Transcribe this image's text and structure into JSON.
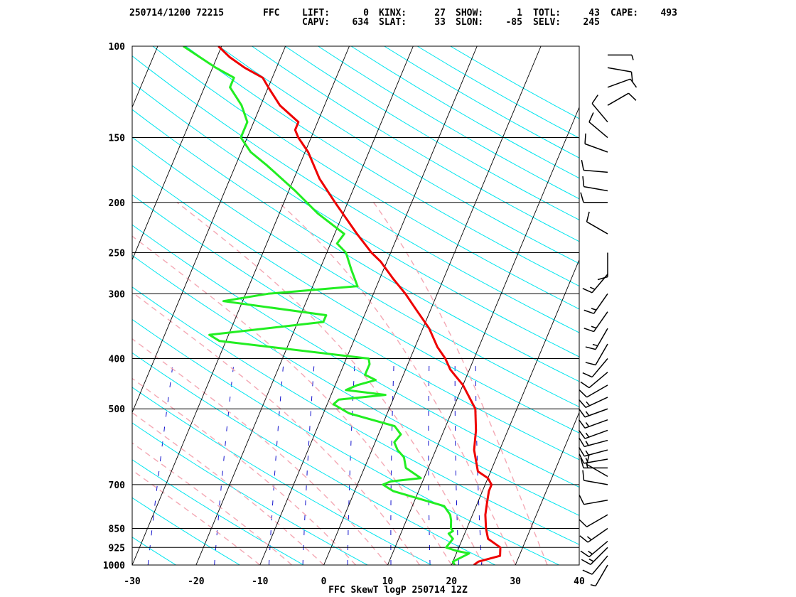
{
  "header": {
    "line1": [
      {
        "key": "stamp",
        "text": "250714/1200 72215"
      },
      {
        "key": "station",
        "text": "FFC"
      },
      {
        "key": "lift",
        "text": "LIFT:      0"
      },
      {
        "key": "kinx",
        "text": "KINX:     27"
      },
      {
        "key": "show",
        "text": "SHOW:      1"
      },
      {
        "key": "totl",
        "text": "TOTL:     43"
      },
      {
        "key": "cape",
        "text": "CAPE:    493"
      }
    ],
    "line2": [
      {
        "key": "capv",
        "text": "CAPV:    634"
      },
      {
        "key": "slat",
        "text": "SLAT:     33"
      },
      {
        "key": "slon",
        "text": "SLON:    -85"
      },
      {
        "key": "selv",
        "text": "SELV:    245"
      }
    ]
  },
  "chart_data": {
    "type": "line",
    "title": "FFC SkewT logP 250714 12Z",
    "x_axis": {
      "label": "",
      "unit": "degC",
      "range": [
        -30,
        40
      ],
      "ticks": [
        -30,
        -20,
        -10,
        0,
        10,
        20,
        30,
        40
      ]
    },
    "y_axis": {
      "label": "",
      "unit": "hPa",
      "scale": "log",
      "range": [
        1000,
        100
      ],
      "ticks": [
        100,
        150,
        200,
        250,
        300,
        400,
        500,
        700,
        850,
        925,
        1000
      ]
    },
    "skew_deg_per_log10": 34,
    "background": {
      "isotherms_deg": [
        -160,
        -150,
        -140,
        -130,
        -120,
        -110,
        -100,
        -90,
        -80,
        -70,
        -60,
        -50,
        -40,
        -30,
        -20,
        -10,
        0,
        10,
        20,
        30,
        40
      ],
      "dry_adiabats_theta_K": [
        250,
        260,
        270,
        280,
        290,
        300,
        310,
        320,
        330,
        340,
        350,
        360,
        370,
        380,
        390,
        400,
        410,
        420,
        430,
        440,
        450,
        460,
        470,
        480,
        490,
        500
      ],
      "moist_adiabats_thetaw_C": [
        -10,
        -5,
        0,
        5,
        10,
        15,
        20,
        25,
        30,
        35
      ],
      "mixing_ratios_gkg": [
        0.4,
        1,
        2,
        3,
        5,
        8,
        12,
        16,
        20
      ]
    },
    "colors": {
      "temperature": "#ee0000",
      "dewpoint": "#22ee22",
      "isotherm": "#000000",
      "isobar": "#000000",
      "dry_adiabat": "#00e5ee",
      "moist_adiabat": "#f4a8b4",
      "mixing_ratio": "#1111cc",
      "wind_barb": "#000000"
    },
    "series": [
      {
        "key": "temperature",
        "points": [
          [
            1000,
            23.5
          ],
          [
            985,
            24.0
          ],
          [
            960,
            27.0
          ],
          [
            925,
            26.5
          ],
          [
            890,
            24.0
          ],
          [
            850,
            23.0
          ],
          [
            800,
            22.0
          ],
          [
            760,
            21.5
          ],
          [
            720,
            21.0
          ],
          [
            700,
            21.0
          ],
          [
            680,
            20.0
          ],
          [
            660,
            18.0
          ],
          [
            600,
            16.0
          ],
          [
            550,
            15.0
          ],
          [
            500,
            13.5
          ],
          [
            450,
            10.0
          ],
          [
            420,
            7.0
          ],
          [
            400,
            5.5
          ],
          [
            380,
            3.5
          ],
          [
            350,
            1.0
          ],
          [
            320,
            -2.5
          ],
          [
            300,
            -5.0
          ],
          [
            280,
            -8.0
          ],
          [
            260,
            -11.0
          ],
          [
            250,
            -13.0
          ],
          [
            230,
            -16.5
          ],
          [
            200,
            -22.0
          ],
          [
            180,
            -26.0
          ],
          [
            160,
            -29.5
          ],
          [
            150,
            -32.0
          ],
          [
            145,
            -33.0
          ],
          [
            140,
            -33.0
          ],
          [
            130,
            -37.0
          ],
          [
            120,
            -40.0
          ],
          [
            115,
            -41.5
          ],
          [
            110,
            -45.0
          ],
          [
            105,
            -48.0
          ],
          [
            100,
            -50.5
          ]
        ]
      },
      {
        "key": "dewpoint",
        "points": [
          [
            1000,
            20.5
          ],
          [
            985,
            20.0
          ],
          [
            950,
            22.0
          ],
          [
            940,
            20.0
          ],
          [
            925,
            18.0
          ],
          [
            890,
            18.5
          ],
          [
            870,
            17.5
          ],
          [
            860,
            18.0
          ],
          [
            850,
            17.5
          ],
          [
            820,
            17.0
          ],
          [
            800,
            16.5
          ],
          [
            770,
            15.0
          ],
          [
            720,
            6.0
          ],
          [
            700,
            4.0
          ],
          [
            690,
            5.0
          ],
          [
            680,
            9.5
          ],
          [
            650,
            6.5
          ],
          [
            620,
            5.5
          ],
          [
            600,
            4.0
          ],
          [
            580,
            3.0
          ],
          [
            560,
            3.5
          ],
          [
            540,
            2.0
          ],
          [
            510,
            -6.0
          ],
          [
            500,
            -7.5
          ],
          [
            490,
            -9.0
          ],
          [
            480,
            -8.5
          ],
          [
            470,
            -1.5
          ],
          [
            460,
            -8.0
          ],
          [
            450,
            -6.5
          ],
          [
            440,
            -4.0
          ],
          [
            430,
            -6.0
          ],
          [
            410,
            -6.0
          ],
          [
            400,
            -6.5
          ],
          [
            370,
            -31.0
          ],
          [
            360,
            -33.0
          ],
          [
            340,
            -16.0
          ],
          [
            330,
            -16.0
          ],
          [
            310,
            -33.0
          ],
          [
            300,
            -26.5
          ],
          [
            290,
            -13.0
          ],
          [
            270,
            -15.0
          ],
          [
            250,
            -17.0
          ],
          [
            240,
            -19.0
          ],
          [
            230,
            -18.5
          ],
          [
            210,
            -24.0
          ],
          [
            190,
            -29.0
          ],
          [
            170,
            -35.0
          ],
          [
            160,
            -38.5
          ],
          [
            150,
            -41.0
          ],
          [
            140,
            -41.0
          ],
          [
            130,
            -43.0
          ],
          [
            120,
            -46.0
          ],
          [
            115,
            -46.0
          ],
          [
            110,
            -49.5
          ],
          [
            100,
            -56.0
          ]
        ]
      }
    ],
    "wind_barbs": [
      {
        "p": 1000,
        "dir": 210,
        "spd": 5
      },
      {
        "p": 960,
        "dir": 220,
        "spd": 10
      },
      {
        "p": 925,
        "dir": 225,
        "spd": 15
      },
      {
        "p": 900,
        "dir": 230,
        "spd": 15
      },
      {
        "p": 850,
        "dir": 235,
        "spd": 15
      },
      {
        "p": 800,
        "dir": 240,
        "spd": 10
      },
      {
        "p": 750,
        "dir": 260,
        "spd": 10
      },
      {
        "p": 700,
        "dir": 280,
        "spd": 10
      },
      {
        "p": 675,
        "dir": 300,
        "spd": 10
      },
      {
        "p": 650,
        "dir": 270,
        "spd": 15
      },
      {
        "p": 625,
        "dir": 260,
        "spd": 15
      },
      {
        "p": 600,
        "dir": 255,
        "spd": 15
      },
      {
        "p": 575,
        "dir": 255,
        "spd": 15
      },
      {
        "p": 550,
        "dir": 250,
        "spd": 15
      },
      {
        "p": 525,
        "dir": 250,
        "spd": 15
      },
      {
        "p": 500,
        "dir": 250,
        "spd": 15
      },
      {
        "p": 475,
        "dir": 245,
        "spd": 15
      },
      {
        "p": 450,
        "dir": 240,
        "spd": 10
      },
      {
        "p": 425,
        "dir": 230,
        "spd": 10
      },
      {
        "p": 400,
        "dir": 220,
        "spd": 10
      },
      {
        "p": 375,
        "dir": 210,
        "spd": 10
      },
      {
        "p": 350,
        "dir": 210,
        "spd": 15
      },
      {
        "p": 325,
        "dir": 215,
        "spd": 15
      },
      {
        "p": 300,
        "dir": 215,
        "spd": 15
      },
      {
        "p": 275,
        "dir": 220,
        "spd": 15
      },
      {
        "p": 250,
        "dir": 180,
        "spd": 10
      },
      {
        "p": 230,
        "dir": 300,
        "spd": 10
      },
      {
        "p": 200,
        "dir": 270,
        "spd": 10
      },
      {
        "p": 190,
        "dir": 280,
        "spd": 10
      },
      {
        "p": 175,
        "dir": 275,
        "spd": 10
      },
      {
        "p": 160,
        "dir": 290,
        "spd": 10
      },
      {
        "p": 150,
        "dir": 310,
        "spd": 10
      },
      {
        "p": 140,
        "dir": 320,
        "spd": 10
      },
      {
        "p": 130,
        "dir": 60,
        "spd": 10
      },
      {
        "p": 120,
        "dir": 70,
        "spd": 10
      },
      {
        "p": 110,
        "dir": 100,
        "spd": 10
      },
      {
        "p": 104,
        "dir": 90,
        "spd": 5
      }
    ]
  }
}
